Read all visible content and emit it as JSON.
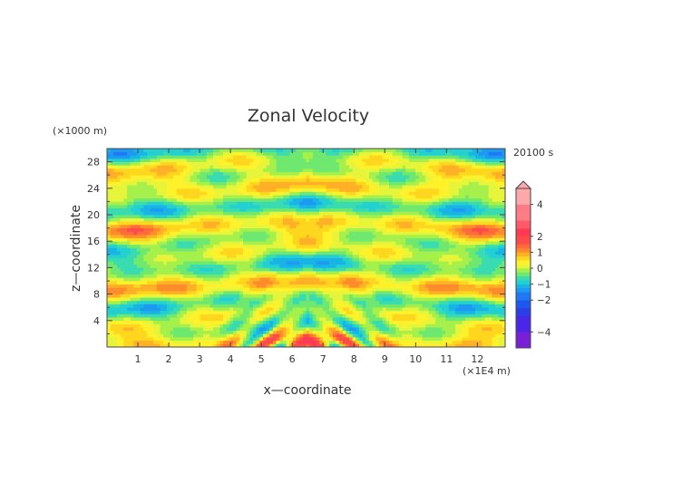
{
  "chart_data": {
    "type": "heatmap",
    "title": "Zonal Velocity",
    "xlabel": "x—coordinate",
    "ylabel": "z—coordinate",
    "x_unit": "(×1E4 m)",
    "y_unit": "(×1000 m)",
    "time_label": "20100 s",
    "xlim": [
      0,
      12.9
    ],
    "ylim": [
      0,
      30
    ],
    "x_ticks": [
      "1",
      "2",
      "3",
      "4",
      "5",
      "6",
      "7",
      "8",
      "9",
      "10",
      "11",
      "12"
    ],
    "y_ticks": [
      "4",
      "8",
      "12",
      "16",
      "20",
      "24",
      "28"
    ],
    "colorbar": {
      "labels": [
        "4",
        "2",
        "1",
        "0",
        "−1",
        "−2",
        "−4"
      ],
      "levels": [
        -5,
        -4,
        -3,
        -2.5,
        -2,
        -1.5,
        -1.25,
        -1,
        -0.75,
        -0.5,
        -0.25,
        0,
        0.25,
        0.5,
        0.75,
        1,
        1.25,
        1.5,
        2,
        2.5,
        3,
        4,
        5
      ],
      "colors": [
        "#7a1fd8",
        "#4b26e6",
        "#2c3ee8",
        "#1e57f0",
        "#1f78f6",
        "#1d99f2",
        "#18b4e6",
        "#22d0d2",
        "#38dcb0",
        "#6fe86f",
        "#a6f04b",
        "#e6f53a",
        "#fff22a",
        "#ffd61e",
        "#ffb026",
        "#ff8c2a",
        "#ff6a3a",
        "#ff4a4a",
        "#ff3a52",
        "#ff5a6a",
        "#ff7c86",
        "#ffa8ac"
      ]
    }
  }
}
